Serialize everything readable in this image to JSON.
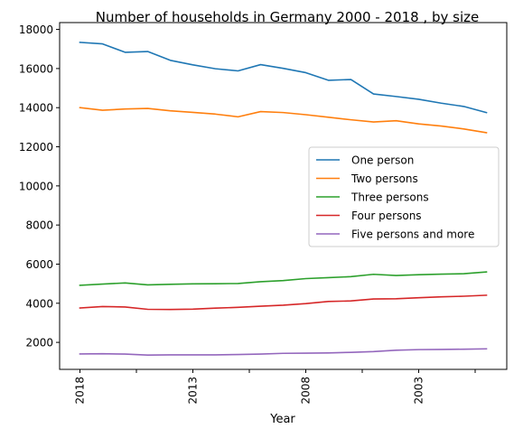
{
  "chart_data": {
    "type": "line",
    "title": "Number of households in Germany 2000 - 2018 , by size",
    "xlabel": "Year",
    "ylabel": "",
    "x": [
      2018,
      2017,
      2016,
      2015,
      2014,
      2013,
      2012,
      2011,
      2010,
      2009,
      2008,
      2007,
      2006,
      2005,
      2004,
      2003,
      2002,
      2001,
      2000
    ],
    "x_ticks": [
      2018,
      2013,
      2008,
      2003
    ],
    "x_minor_ticks": [
      2018,
      2015.5,
      2013,
      2010.5,
      2008,
      2005.5,
      2003,
      2000.5
    ],
    "xlim": [
      2018.9,
      1999.1
    ],
    "ylim": [
      620,
      18350
    ],
    "y_ticks": [
      2000,
      4000,
      6000,
      8000,
      10000,
      12000,
      14000,
      16000,
      18000
    ],
    "grid": false,
    "legend_position": "center-right",
    "series": [
      {
        "name": "One person",
        "color": "#1f77b4",
        "values": [
          17340,
          17260,
          16830,
          16870,
          16420,
          16190,
          15990,
          15880,
          16200,
          16010,
          15790,
          15400,
          15440,
          14700,
          14570,
          14430,
          14230,
          14060,
          13750
        ]
      },
      {
        "name": "Two persons",
        "color": "#ff7f0e",
        "values": [
          14000,
          13870,
          13930,
          13960,
          13840,
          13760,
          13670,
          13530,
          13800,
          13750,
          13640,
          13510,
          13380,
          13270,
          13330,
          13170,
          13060,
          12910,
          12720
        ]
      },
      {
        "name": "Three persons",
        "color": "#2ca02c",
        "values": [
          4920,
          4980,
          5040,
          4940,
          4970,
          4990,
          5000,
          5010,
          5100,
          5160,
          5260,
          5310,
          5360,
          5480,
          5420,
          5460,
          5490,
          5510,
          5600
        ]
      },
      {
        "name": "Four persons",
        "color": "#d62728",
        "values": [
          3760,
          3830,
          3810,
          3690,
          3680,
          3700,
          3750,
          3790,
          3850,
          3900,
          3980,
          4090,
          4120,
          4220,
          4230,
          4280,
          4330,
          4360,
          4410
        ]
      },
      {
        "name": "Five persons and more",
        "color": "#9467bd",
        "values": [
          1410,
          1420,
          1400,
          1350,
          1360,
          1360,
          1360,
          1380,
          1400,
          1440,
          1450,
          1460,
          1490,
          1530,
          1600,
          1630,
          1640,
          1650,
          1670
        ]
      }
    ]
  }
}
